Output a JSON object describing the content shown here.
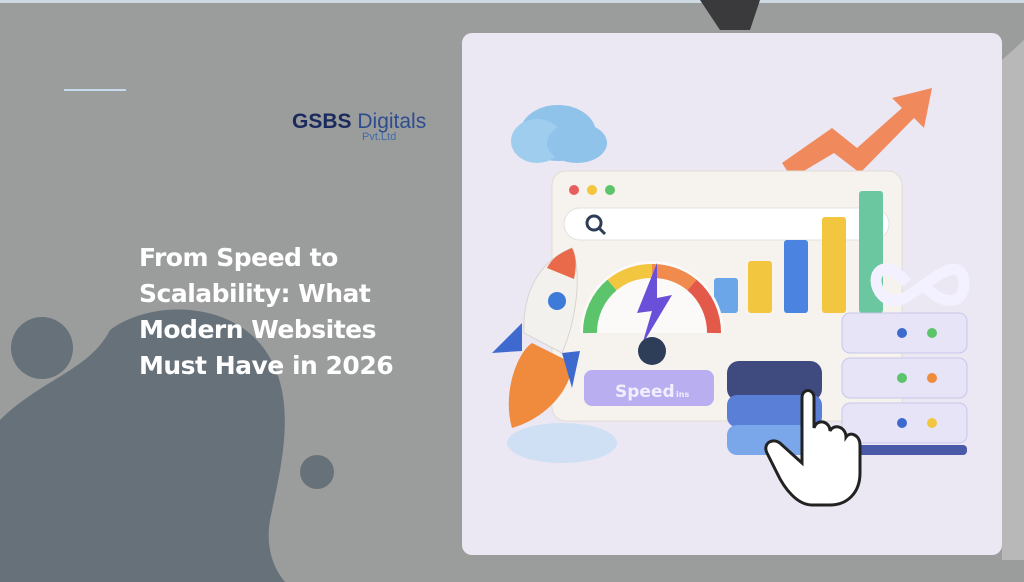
{
  "brand": {
    "name_bold": "GSBS",
    "name_rest": "Digitals",
    "suffix": "Pvt.Ltd"
  },
  "headline": [
    "From Speed to",
    "Scalability: What",
    "Modern Websites",
    "Must Have in 2026"
  ],
  "illustration": {
    "gauge_label": "Speed",
    "gauge_unit": "ins",
    "icons": [
      "cloud-icon",
      "trend-arrow-icon",
      "browser-window-icon",
      "search-icon",
      "bar-chart-icon",
      "speedometer-icon",
      "rocket-icon",
      "infinity-icon",
      "server-stack-icon",
      "database-icon",
      "pointer-hand-icon"
    ]
  },
  "colors": {
    "background": "#9b9c9c",
    "blob": "#66717a",
    "card": "#ece8f3",
    "brand": "#1d2f63"
  }
}
